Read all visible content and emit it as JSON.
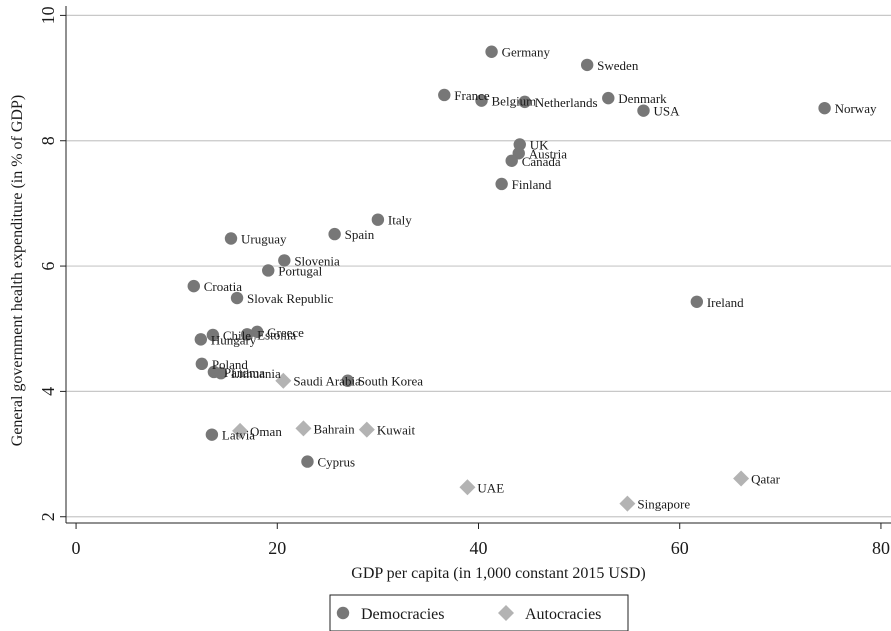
{
  "chart_data": {
    "type": "scatter",
    "xlabel": "GDP per capita (in 1,000 constant 2015 USD)",
    "ylabel": "General government health expenditure (in % of GDP)",
    "xlim": [
      -1,
      81
    ],
    "ylim": [
      1.9,
      10.15
    ],
    "xticks": [
      "0",
      "20",
      "40",
      "60",
      "80"
    ],
    "yticks": [
      "2",
      "4",
      "6",
      "8",
      "10"
    ],
    "grid": "horizontal",
    "legend_position": "bottom",
    "series": [
      {
        "name": "Democracies",
        "marker": "circle",
        "color": "#777777",
        "points": [
          {
            "label": "Germany",
            "x": 41.3,
            "y": 9.42
          },
          {
            "label": "Sweden",
            "x": 50.8,
            "y": 9.21
          },
          {
            "label": "France",
            "x": 36.6,
            "y": 8.73
          },
          {
            "label": "Belgium",
            "x": 40.3,
            "y": 8.64
          },
          {
            "label": "Netherlands",
            "x": 44.6,
            "y": 8.62
          },
          {
            "label": "Denmark",
            "x": 52.9,
            "y": 8.68
          },
          {
            "label": "USA",
            "x": 56.4,
            "y": 8.48
          },
          {
            "label": "Norway",
            "x": 74.4,
            "y": 8.52
          },
          {
            "label": "UK",
            "x": 44.1,
            "y": 7.94
          },
          {
            "label": "Austria",
            "x": 44.0,
            "y": 7.8
          },
          {
            "label": "Canada",
            "x": 43.3,
            "y": 7.68
          },
          {
            "label": "Finland",
            "x": 42.3,
            "y": 7.31
          },
          {
            "label": "Italy",
            "x": 30.0,
            "y": 6.74
          },
          {
            "label": "Spain",
            "x": 25.7,
            "y": 6.51
          },
          {
            "label": "Uruguay",
            "x": 15.4,
            "y": 6.44
          },
          {
            "label": "Slovenia",
            "x": 20.7,
            "y": 6.09
          },
          {
            "label": "Portugal",
            "x": 19.1,
            "y": 5.93
          },
          {
            "label": "Croatia",
            "x": 11.7,
            "y": 5.68
          },
          {
            "label": "Slovak Republic",
            "x": 16.0,
            "y": 5.49
          },
          {
            "label": "Ireland",
            "x": 61.7,
            "y": 5.43
          },
          {
            "label": "Greece",
            "x": 18.0,
            "y": 4.95
          },
          {
            "label": "Estonia",
            "x": 17.0,
            "y": 4.91
          },
          {
            "label": "Chile",
            "x": 13.6,
            "y": 4.9
          },
          {
            "label": "Hungary",
            "x": 12.4,
            "y": 4.83
          },
          {
            "label": "Poland",
            "x": 12.5,
            "y": 4.44
          },
          {
            "label": "Panama",
            "x": 13.7,
            "y": 4.31
          },
          {
            "label": "Lithuania",
            "x": 14.4,
            "y": 4.29
          },
          {
            "label": "South Korea",
            "x": 27.0,
            "y": 4.17
          },
          {
            "label": "Latvia",
            "x": 13.5,
            "y": 3.31
          },
          {
            "label": "Cyprus",
            "x": 23.0,
            "y": 2.88
          }
        ]
      },
      {
        "name": "Autocracies",
        "marker": "diamond",
        "color": "#b3b3b3",
        "points": [
          {
            "label": "Saudi Arabia",
            "x": 20.6,
            "y": 4.17
          },
          {
            "label": "Oman",
            "x": 16.3,
            "y": 3.37
          },
          {
            "label": "Bahrain",
            "x": 22.6,
            "y": 3.41
          },
          {
            "label": "Kuwait",
            "x": 28.9,
            "y": 3.39
          },
          {
            "label": "UAE",
            "x": 38.9,
            "y": 2.47
          },
          {
            "label": "Qatar",
            "x": 66.1,
            "y": 2.61
          },
          {
            "label": "Singapore",
            "x": 54.8,
            "y": 2.21
          }
        ]
      }
    ]
  }
}
